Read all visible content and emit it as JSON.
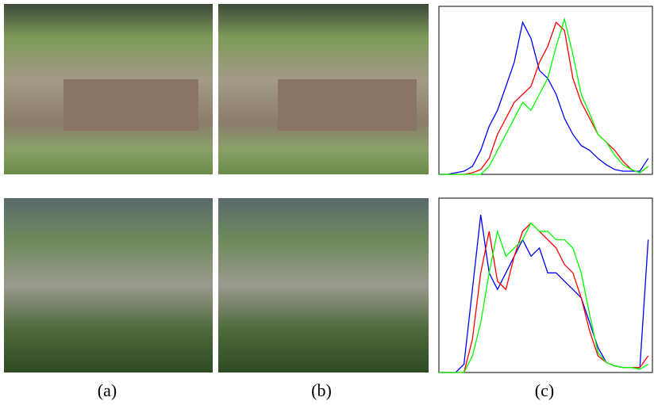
{
  "captions": [
    "(a)",
    "(b)",
    "(c)"
  ],
  "chart_data": [
    {
      "type": "line",
      "x": [
        0,
        10,
        20,
        30,
        40,
        50,
        60,
        70,
        80,
        90,
        100,
        110,
        120,
        130,
        140,
        150,
        160,
        170,
        180,
        190,
        200,
        210,
        220,
        230,
        240,
        250
      ],
      "xlim": [
        0,
        255
      ],
      "ylim": [
        0,
        1.05
      ],
      "series": [
        {
          "color": "#0000ff",
          "values": [
            0,
            0,
            0.01,
            0.02,
            0.05,
            0.15,
            0.3,
            0.4,
            0.55,
            0.7,
            0.95,
            0.85,
            0.65,
            0.6,
            0.5,
            0.35,
            0.25,
            0.18,
            0.15,
            0.1,
            0.06,
            0.03,
            0.02,
            0.02,
            0.02,
            0.1
          ]
        },
        {
          "color": "#ff0000",
          "values": [
            0,
            0,
            0,
            0,
            0.01,
            0.03,
            0.1,
            0.25,
            0.35,
            0.45,
            0.5,
            0.55,
            0.7,
            0.8,
            0.95,
            0.9,
            0.6,
            0.45,
            0.35,
            0.25,
            0.2,
            0.15,
            0.08,
            0.03,
            0.01,
            0.05
          ]
        },
        {
          "color": "#00ff00",
          "values": [
            0,
            0,
            0,
            0,
            0,
            0,
            0.05,
            0.15,
            0.25,
            0.35,
            0.45,
            0.4,
            0.5,
            0.6,
            0.8,
            0.97,
            0.75,
            0.5,
            0.38,
            0.25,
            0.2,
            0.12,
            0.06,
            0.03,
            0.01,
            0.05
          ]
        }
      ]
    },
    {
      "type": "line",
      "x": [
        0,
        10,
        20,
        30,
        40,
        50,
        60,
        70,
        80,
        90,
        100,
        110,
        120,
        130,
        140,
        150,
        160,
        170,
        180,
        190,
        200,
        210,
        220,
        230,
        240,
        250
      ],
      "xlim": [
        0,
        255
      ],
      "ylim": [
        0,
        1.05
      ],
      "series": [
        {
          "color": "#0000ff",
          "values": [
            0,
            0,
            0,
            0.05,
            0.5,
            0.95,
            0.6,
            0.5,
            0.6,
            0.7,
            0.8,
            0.7,
            0.75,
            0.6,
            0.6,
            0.55,
            0.5,
            0.45,
            0.3,
            0.15,
            0.06,
            0.04,
            0.03,
            0.03,
            0.03,
            0.8
          ]
        },
        {
          "color": "#ff0000",
          "values": [
            0,
            0,
            0,
            0,
            0.2,
            0.6,
            0.85,
            0.55,
            0.5,
            0.7,
            0.85,
            0.9,
            0.85,
            0.8,
            0.75,
            0.65,
            0.6,
            0.45,
            0.25,
            0.1,
            0.06,
            0.04,
            0.03,
            0.03,
            0.03,
            0.1
          ]
        },
        {
          "color": "#00ff00",
          "values": [
            0,
            0,
            0,
            0,
            0.1,
            0.3,
            0.6,
            0.85,
            0.7,
            0.75,
            0.8,
            0.9,
            0.85,
            0.85,
            0.8,
            0.8,
            0.75,
            0.6,
            0.35,
            0.12,
            0.06,
            0.04,
            0.03,
            0.03,
            0.02,
            0.05
          ]
        }
      ]
    }
  ]
}
